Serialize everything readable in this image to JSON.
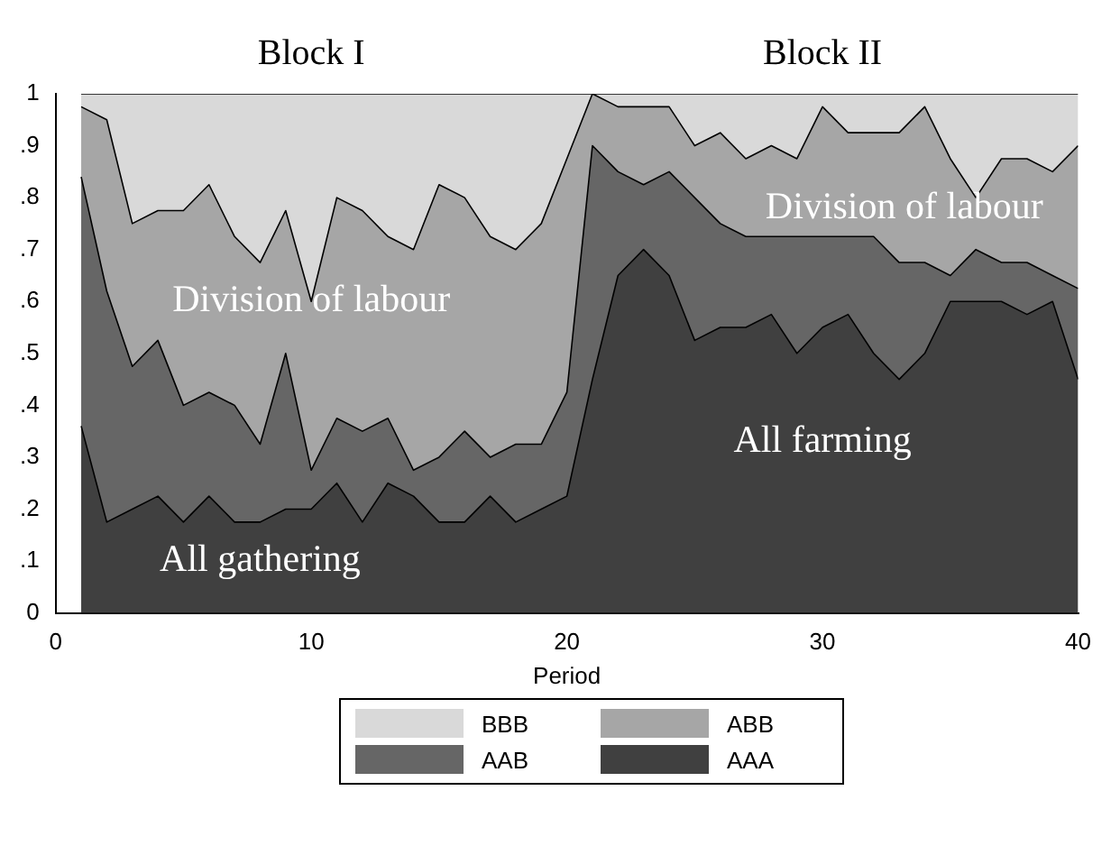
{
  "chart_data": {
    "type": "area",
    "stacked": true,
    "xlabel": "Period",
    "x": [
      1,
      2,
      3,
      4,
      5,
      6,
      7,
      8,
      9,
      10,
      11,
      12,
      13,
      14,
      15,
      16,
      17,
      18,
      19,
      20,
      21,
      22,
      23,
      24,
      25,
      26,
      27,
      28,
      29,
      30,
      31,
      32,
      33,
      34,
      35,
      36,
      37,
      38,
      39,
      40
    ],
    "series": [
      {
        "name": "AAA",
        "color": "#404040",
        "values": [
          0.36,
          0.175,
          0.2,
          0.225,
          0.175,
          0.225,
          0.175,
          0.175,
          0.2,
          0.2,
          0.25,
          0.175,
          0.25,
          0.225,
          0.175,
          0.175,
          0.225,
          0.175,
          0.2,
          0.225,
          0.45,
          0.65,
          0.7,
          0.65,
          0.525,
          0.55,
          0.55,
          0.575,
          0.5,
          0.55,
          0.575,
          0.5,
          0.45,
          0.5,
          0.6,
          0.6,
          0.6,
          0.575,
          0.6,
          0.45
        ]
      },
      {
        "name": "AAB",
        "color": "#666666",
        "values": [
          0.48,
          0.445,
          0.275,
          0.3,
          0.225,
          0.2,
          0.225,
          0.15,
          0.3,
          0.075,
          0.125,
          0.175,
          0.125,
          0.05,
          0.125,
          0.175,
          0.075,
          0.15,
          0.125,
          0.2,
          0.45,
          0.2,
          0.125,
          0.2,
          0.275,
          0.2,
          0.175,
          0.15,
          0.225,
          0.175,
          0.15,
          0.225,
          0.225,
          0.175,
          0.05,
          0.1,
          0.075,
          0.1,
          0.05,
          0.175
        ]
      },
      {
        "name": "ABB",
        "color": "#a6a6a6",
        "values": [
          0.135,
          0.33,
          0.275,
          0.25,
          0.375,
          0.4,
          0.325,
          0.35,
          0.275,
          0.325,
          0.425,
          0.425,
          0.35,
          0.425,
          0.525,
          0.45,
          0.425,
          0.375,
          0.425,
          0.45,
          0.1,
          0.125,
          0.15,
          0.125,
          0.1,
          0.175,
          0.15,
          0.175,
          0.15,
          0.25,
          0.2,
          0.2,
          0.25,
          0.3,
          0.225,
          0.1,
          0.2,
          0.2,
          0.2,
          0.275
        ]
      },
      {
        "name": "BBB",
        "color": "#d9d9d9",
        "values": [
          0.025,
          0.05,
          0.25,
          0.225,
          0.225,
          0.175,
          0.275,
          0.325,
          0.225,
          0.4,
          0.2,
          0.225,
          0.275,
          0.3,
          0.175,
          0.2,
          0.275,
          0.3,
          0.25,
          0.125,
          0,
          0.025,
          0.025,
          0.025,
          0.1,
          0.075,
          0.125,
          0.1,
          0.125,
          0.025,
          0.075,
          0.075,
          0.075,
          0.025,
          0.125,
          0.2,
          0.125,
          0.125,
          0.15,
          0.1
        ]
      }
    ],
    "xlim": [
      0,
      40
    ],
    "xticks": [
      0,
      10,
      20,
      30,
      40
    ],
    "ylim": [
      0,
      1
    ],
    "yticks": [
      0,
      {
        "value": 0.1,
        "label": ".1"
      },
      {
        "value": 0.2,
        "label": ".2"
      },
      {
        "value": 0.3,
        "label": ".3"
      },
      {
        "value": 0.4,
        "label": ".4"
      },
      {
        "value": 0.5,
        "label": ".5"
      },
      {
        "value": 0.6,
        "label": ".6"
      },
      {
        "value": 0.7,
        "label": ".7"
      },
      {
        "value": 0.8,
        "label": ".8"
      },
      {
        "value": 0.9,
        "label": ".9"
      },
      1
    ],
    "grid": false,
    "legend": "bottom",
    "annotations": [
      "Block I",
      "Block II",
      "Division of labour",
      "Division of labour",
      "All farming",
      "All gathering"
    ]
  }
}
